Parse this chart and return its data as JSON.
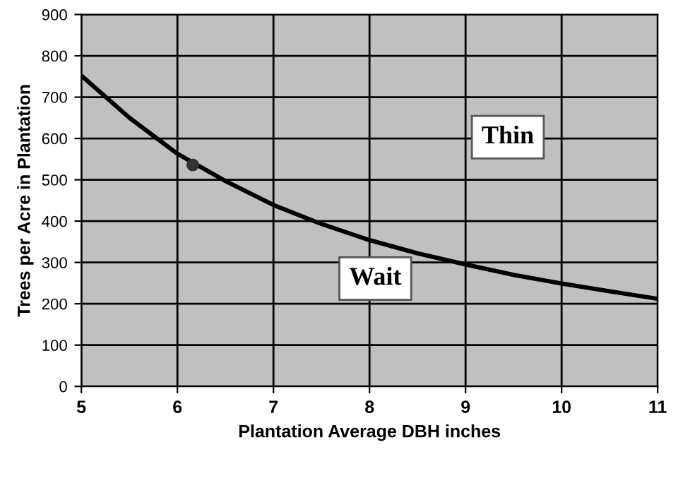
{
  "chart_data": {
    "type": "line",
    "xlabel": "Plantation Average DBH inches",
    "ylabel": "Trees per Acre in Plantation",
    "series": [
      {
        "color": "#000000",
        "x": [
          5,
          5.5,
          6,
          6.5,
          7,
          7.5,
          8,
          8.5,
          9,
          9.5,
          10,
          10.5,
          11
        ],
        "values": [
          752,
          650,
          563,
          497,
          439,
          393,
          354,
          322,
          295,
          270,
          249,
          230,
          212
        ],
        "marker": "none"
      },
      {
        "type": "scatter",
        "color": "#333333",
        "x": [
          6.16
        ],
        "values": [
          536
        ],
        "marker": "circle"
      }
    ],
    "annotations": [
      "Thin",
      "Wait"
    ],
    "xlim": [
      5,
      11
    ],
    "xticks": [
      5,
      6,
      7,
      8,
      9,
      10,
      11
    ],
    "ylim": [
      0,
      900
    ],
    "yticks": [
      0,
      100,
      200,
      300,
      400,
      500,
      600,
      700,
      800,
      900
    ],
    "grid": true
  }
}
